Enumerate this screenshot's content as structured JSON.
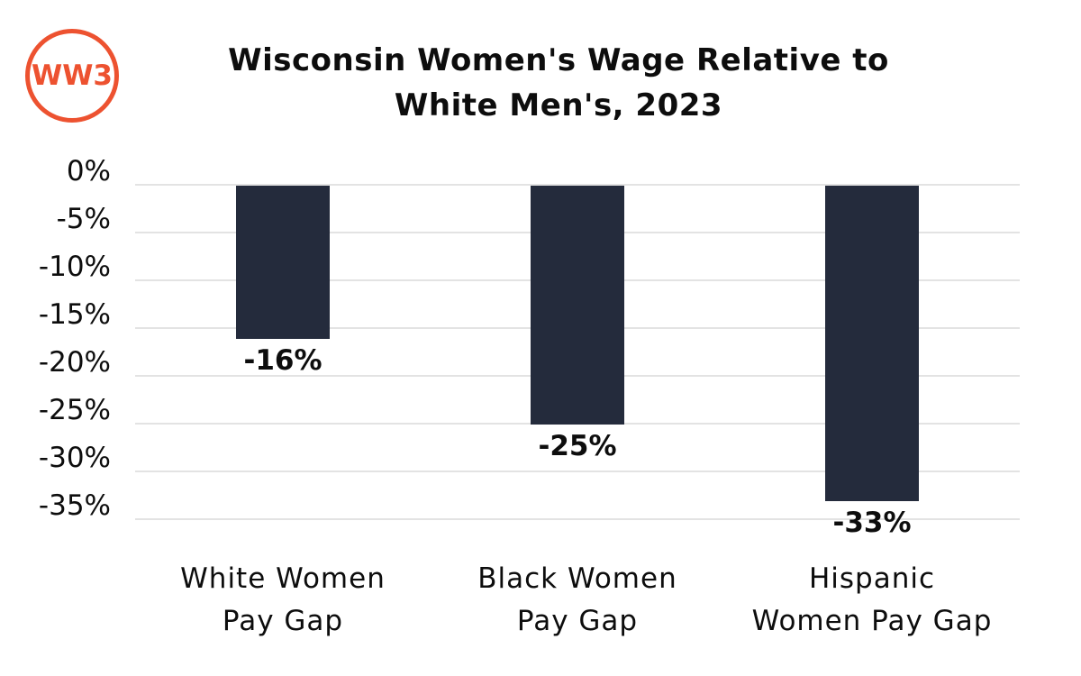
{
  "logo": {
    "text": "WW3",
    "color": "#ED5230"
  },
  "title": {
    "line1": "Wisconsin Women's Wage Relative to",
    "line2": "White Men's, 2023"
  },
  "chart_data": {
    "type": "bar",
    "title": "Wisconsin Women's Wage Relative to White Men's, 2023",
    "categories": [
      "White Women Pay Gap",
      "Black Women Pay Gap",
      "Hispanic Women Pay Gap"
    ],
    "category_lines": [
      [
        "White Women",
        "Pay Gap"
      ],
      [
        "Black Women",
        "Pay Gap"
      ],
      [
        "Hispanic",
        "Women Pay Gap"
      ]
    ],
    "values": [
      -16,
      -25,
      -33
    ],
    "data_labels": [
      "-16%",
      "-25%",
      "-33%"
    ],
    "y_ticks": [
      "0%",
      "-5%",
      "-10%",
      "-15%",
      "-20%",
      "-25%",
      "-30%",
      "-35%"
    ],
    "y_tick_values": [
      0,
      -5,
      -10,
      -15,
      -20,
      -25,
      -30,
      -35
    ],
    "ylim": [
      -35,
      0
    ],
    "xlabel": "",
    "ylabel": "",
    "bar_color": "#242B3C",
    "gridline_color": "#E3E3E3",
    "grid": true,
    "legend": false
  }
}
